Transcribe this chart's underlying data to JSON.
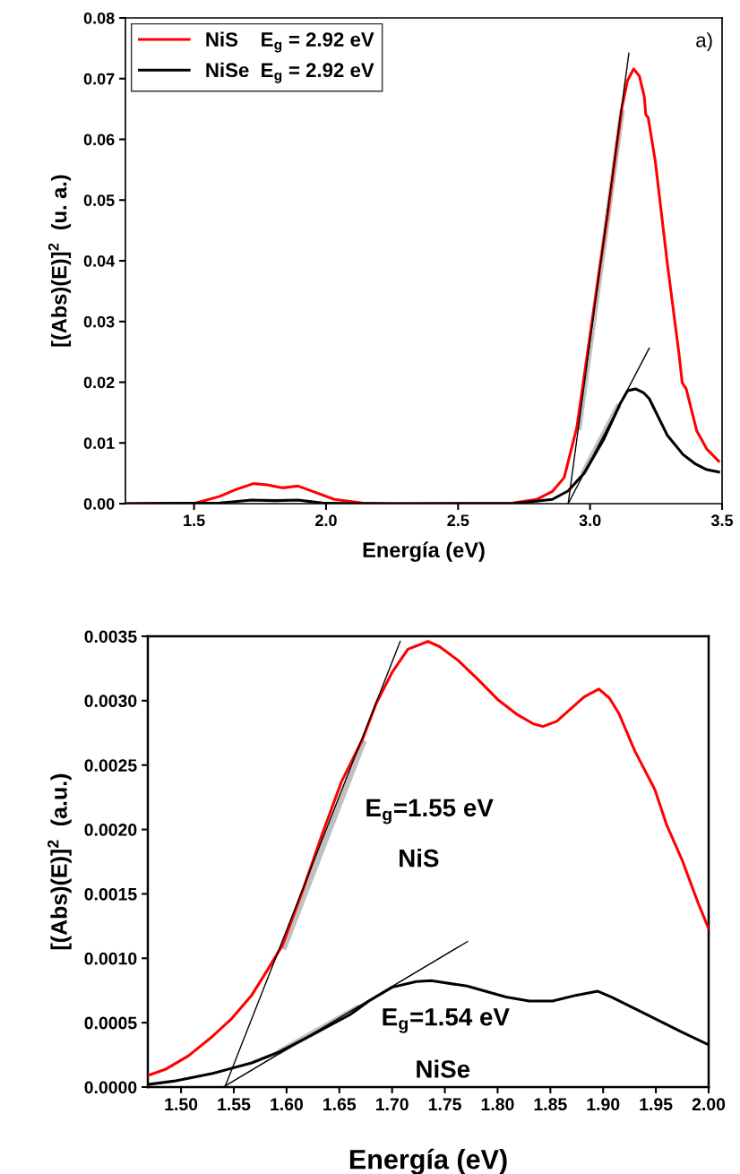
{
  "chart_data": [
    {
      "type": "line",
      "xlabel": "Energía (eV)",
      "ylabel": "[(Abs)(E)]$^{2}$  (u. a.)",
      "xlim": [
        1.24,
        3.5
      ],
      "ylim": [
        0,
        0.08
      ],
      "xticks": [
        1.5,
        {
          "value": 2.0,
          "label": "2.0"
        },
        2.5,
        {
          "value": 3.0,
          "label": "3.0"
        },
        3.5
      ],
      "yticks": [
        {
          "value": 0,
          "label": "0.00"
        },
        0.01,
        0.02,
        0.03,
        0.04,
        0.05,
        0.06,
        0.07,
        0.08
      ],
      "legend": "top left",
      "grid": false,
      "annotations": [
        "a)"
      ],
      "series": [
        {
          "name": "NiS    E$_{g}$ = 2.92 eV",
          "color": "#ff0000",
          "x": [
            1.24,
            1.507,
            1.597,
            1.657,
            1.725,
            1.777,
            1.837,
            1.894,
            1.957,
            2.032,
            2.137,
            2.257,
            2.707,
            2.797,
            2.857,
            2.902,
            2.95,
            3.007,
            3.067,
            3.12,
            3.142,
            3.165,
            3.187,
            3.205,
            3.211,
            3.22,
            3.247,
            3.292,
            3.337,
            3.349,
            3.364,
            3.404,
            3.442,
            3.487
          ],
          "values": [
            0,
            0.0001,
            0.0012,
            0.0023,
            0.0033,
            0.0031,
            0.0026,
            0.0029,
            0.0019,
            0.0007,
            0.0001,
            0,
            0.0001,
            0.0007,
            0.002,
            0.0043,
            0.0126,
            0.0299,
            0.0478,
            0.0651,
            0.0697,
            0.0716,
            0.0704,
            0.0671,
            0.0641,
            0.0636,
            0.0564,
            0.0398,
            0.0246,
            0.0199,
            0.0189,
            0.012,
            0.009,
            0.007
          ]
        },
        {
          "name": "NiSe  E$_{g}$ = 2.92 eV",
          "color": "#000000",
          "x": [
            1.24,
            1.597,
            1.717,
            1.807,
            1.894,
            1.987,
            2.107,
            2.707,
            2.857,
            2.917,
            2.977,
            3.052,
            3.112,
            3.142,
            3.172,
            3.202,
            3.224,
            3.292,
            3.352,
            3.397,
            3.442,
            3.487
          ],
          "values": [
            0,
            0.0001,
            0.0006,
            0.0005,
            0.0006,
            0.0001,
            0,
            0,
            0.0007,
            0.0021,
            0.005,
            0.0106,
            0.0163,
            0.0186,
            0.0189,
            0.0183,
            0.0173,
            0.0113,
            0.0081,
            0.0066,
            0.0056,
            0.0052
          ]
        },
        {
          "color": "#c0c0c0",
          "x": [
            2.958,
            3.12
          ],
          "values": [
            0.0126,
            0.0644
          ]
        },
        {
          "color": "#c0c0c0",
          "x": [
            2.977,
            3.105
          ],
          "values": [
            0.0053,
            0.0159
          ]
        },
        {
          "color": "#000000",
          "x": [
            2.917,
            3.147
          ],
          "values": [
            0,
            0.0742
          ]
        },
        {
          "color": "#000000",
          "x": [
            2.917,
            3.224
          ],
          "values": [
            0,
            0.0256
          ]
        }
      ]
    },
    {
      "type": "line",
      "xlabel": "Energía (eV)",
      "ylabel": "[(Abs)(E)]$^{2}$  (a.u.)",
      "xlim": [
        1.4685,
        2.0
      ],
      "ylim": [
        0,
        0.0035
      ],
      "xticks": [
        {
          "value": 1.5,
          "label": "1.50"
        },
        1.55,
        {
          "value": 1.6,
          "label": "1.60"
        },
        1.65,
        {
          "value": 1.7,
          "label": "1.70"
        },
        1.75,
        {
          "value": 1.8,
          "label": "1.80"
        },
        1.85,
        {
          "value": 1.9,
          "label": "1.90"
        },
        1.95,
        {
          "value": 2.0,
          "label": "2.00"
        }
      ],
      "yticks": [
        {
          "value": 0,
          "label": "0.0000"
        },
        0.0005,
        {
          "value": 0.001,
          "label": "0.0010"
        },
        0.0015,
        {
          "value": 0.002,
          "label": "0.0020"
        },
        0.0025,
        {
          "value": 0.003,
          "label": "0.0030"
        },
        0.0035
      ],
      "grid": false,
      "annotations": [
        "E$_{g}$=1.55 eV",
        "NiS",
        "E$_{g}$=1.54 eV",
        "NiSe"
      ],
      "series": [
        {
          "color": "#ff0000",
          "x": [
            1.4685,
            1.485,
            1.507,
            1.53,
            1.548,
            1.567,
            1.582,
            1.596,
            1.615,
            1.634,
            1.652,
            1.672,
            1.685,
            1.7,
            1.715,
            1.734,
            1.745,
            1.763,
            1.782,
            1.8,
            1.819,
            1.834,
            1.843,
            1.856,
            1.871,
            1.882,
            1.896,
            1.906,
            1.915,
            1.93,
            1.949,
            1.96,
            1.975,
            1.99,
            2.0
          ],
          "values": [
            9e-05,
            0.000137,
            0.000243,
            0.000395,
            0.000532,
            0.000714,
            0.000911,
            0.0011,
            0.00152,
            0.00197,
            0.00237,
            0.0027,
            0.00298,
            0.00322,
            0.0034,
            0.00346,
            0.00342,
            0.00331,
            0.00316,
            0.00301,
            0.00289,
            0.00282,
            0.0028,
            0.00284,
            0.00295,
            0.00303,
            0.00309,
            0.00302,
            0.0029,
            0.00261,
            0.00231,
            0.00204,
            0.00176,
            0.00143,
            0.00123
          ]
        },
        {
          "color": "#000000",
          "x": [
            1.4685,
            1.493,
            1.53,
            1.567,
            1.593,
            1.622,
            1.66,
            1.678,
            1.7,
            1.723,
            1.737,
            1.771,
            1.808,
            1.83,
            1.852,
            1.875,
            1.895,
            1.908,
            1.938,
            1.975,
            2.0
          ],
          "values": [
            2e-05,
            4.6e-05,
            0.000106,
            0.000188,
            0.000273,
            0.000395,
            0.000562,
            0.000668,
            0.000775,
            0.00082,
            0.000826,
            0.000784,
            0.000699,
            0.000668,
            0.000668,
            0.000714,
            0.000744,
            0.000699,
            0.000577,
            0.000425,
            0.000328
          ]
        },
        {
          "color": "#c0c0c0",
          "x": [
            1.598,
            1.6725
          ],
          "values": [
            0.00109,
            0.00267
          ]
        },
        {
          "color": "#c0c0c0",
          "x": [
            1.5946,
            1.667
          ],
          "values": [
            0.00028,
            0.000614
          ]
        },
        {
          "color": "#000000",
          "x": [
            1.5415,
            1.7077
          ],
          "values": [
            0,
            0.00346
          ]
        },
        {
          "color": "#000000",
          "x": [
            1.54,
            1.7715
          ],
          "values": [
            0,
            0.00113
          ]
        }
      ]
    }
  ]
}
